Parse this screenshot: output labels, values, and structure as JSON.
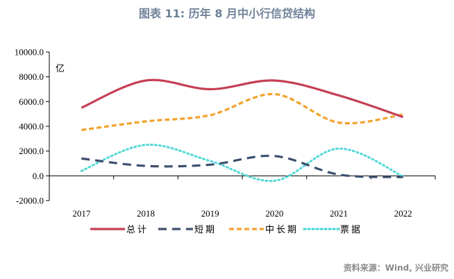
{
  "title": "图表 11: 历年 8 月中小行信贷结构",
  "source": "资料来源：Wind, 兴业研究",
  "chart_data": {
    "type": "line",
    "title": "图表 11: 历年 8 月中小行信贷结构",
    "ylabel": "亿",
    "xlabel": "",
    "categories": [
      "2017",
      "2018",
      "2019",
      "2020",
      "2021",
      "2022"
    ],
    "ylim": [
      -2000,
      10000
    ],
    "yticks": [
      -2000,
      0,
      2000,
      4000,
      6000,
      8000,
      10000
    ],
    "ytick_labels": [
      "-2000.0",
      "0.0",
      "2000.0",
      "4000.0",
      "6000.0",
      "8000.0",
      "10000.0"
    ],
    "smooth": true,
    "grid": false,
    "legend_position": "bottom",
    "series": [
      {
        "name": "总计",
        "color": "#c63f55",
        "style": "solid",
        "values": [
          5500,
          7700,
          7000,
          7700,
          6500,
          4750
        ]
      },
      {
        "name": "短期",
        "color": "#3e4f6e",
        "style": "dashed",
        "values": [
          1400,
          800,
          900,
          1600,
          100,
          -100
        ]
      },
      {
        "name": "中长期",
        "color": "#f2a22a",
        "style": "short-dashed",
        "values": [
          3700,
          4400,
          4900,
          6600,
          4300,
          4950
        ]
      },
      {
        "name": "票据",
        "color": "#4fd8d8",
        "style": "dotted",
        "values": [
          400,
          2500,
          1200,
          -400,
          2200,
          -50
        ]
      }
    ]
  }
}
